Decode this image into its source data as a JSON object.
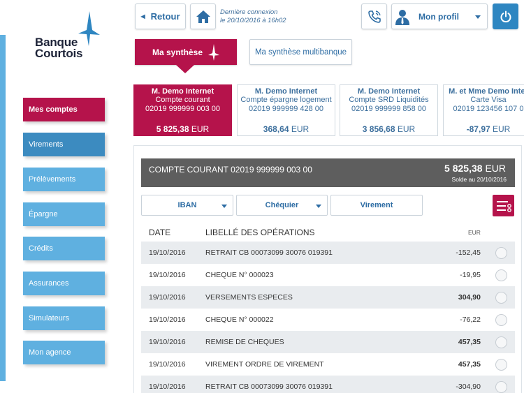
{
  "brand": {
    "name_line1": "Banque",
    "name_line2": "Courtois",
    "accent": "#b5134b",
    "blue": "#2e6da4",
    "light_blue": "#5fb0e0"
  },
  "header": {
    "back_label": "Retour",
    "home_icon": "home-icon",
    "last_login_line1": "Dernière connexion",
    "last_login_line2": "le 20/10/2016 à 16h02",
    "phone_icon": "phone-icon",
    "profile_label": "Mon profil",
    "profile_icon": "user-icon",
    "power_icon": "power-icon"
  },
  "tabs": {
    "synthese": "Ma synthèse",
    "multibanque": "Ma synthèse multibanque"
  },
  "nav": [
    {
      "label": "Mes comptes"
    },
    {
      "label": "Virements"
    },
    {
      "label": "Prélèvements"
    },
    {
      "label": "Épargne"
    },
    {
      "label": "Crédits"
    },
    {
      "label": "Assurances"
    },
    {
      "label": "Simulateurs"
    },
    {
      "label": "Mon agence"
    }
  ],
  "accounts": [
    {
      "holder": "M. Demo Internet",
      "type": "Compte courant",
      "number": "02019 999999 003 00",
      "amount": "5 825,38",
      "currency": "EUR"
    },
    {
      "holder": "M. Demo Internet",
      "type": "Compte épargne logement",
      "number": "02019 999999 428 00",
      "amount": "368,64",
      "currency": "EUR"
    },
    {
      "holder": "M. Demo Internet",
      "type": "Compte SRD Liquidités",
      "number": "02019 999999 858 00",
      "amount": "3 856,68",
      "currency": "EUR"
    },
    {
      "holder": "M. et Mme Demo Inter",
      "type": "Carte Visa",
      "number": "02019 123456 107 0",
      "amount": "-87,97",
      "currency": "EUR"
    }
  ],
  "account_detail": {
    "title": "COMPTE COURANT 02019 999999 003 00",
    "balance": "5 825,38",
    "currency": "EUR",
    "balance_date": "Solde au 20/10/2016"
  },
  "actions": {
    "iban": "IBAN",
    "cheque": "Chéquier",
    "virement": "Virement",
    "menu_icon": "list-menu-icon"
  },
  "table": {
    "col_date": "DATE",
    "col_label": "LIBELLÉ DES OPÉRATIONS",
    "col_currency": "EUR",
    "rows": [
      {
        "date": "19/10/2016",
        "label": "RETRAIT CB 00073099 30076 019391",
        "amount": "-152,45"
      },
      {
        "date": "19/10/2016",
        "label": "CHEQUE N° 000023",
        "amount": "-19,95"
      },
      {
        "date": "19/10/2016",
        "label": "VERSEMENTS ESPECES",
        "amount": "304,90"
      },
      {
        "date": "19/10/2016",
        "label": "CHEQUE N° 000022",
        "amount": "-76,22"
      },
      {
        "date": "19/10/2016",
        "label": "REMISE DE CHEQUES",
        "amount": "457,35"
      },
      {
        "date": "19/10/2016",
        "label": "VIREMENT ORDRE DE VIREMENT",
        "amount": "457,35"
      },
      {
        "date": "19/10/2016",
        "label": "RETRAIT CB 00073099 30076 019391",
        "amount": "-304,90"
      }
    ]
  }
}
